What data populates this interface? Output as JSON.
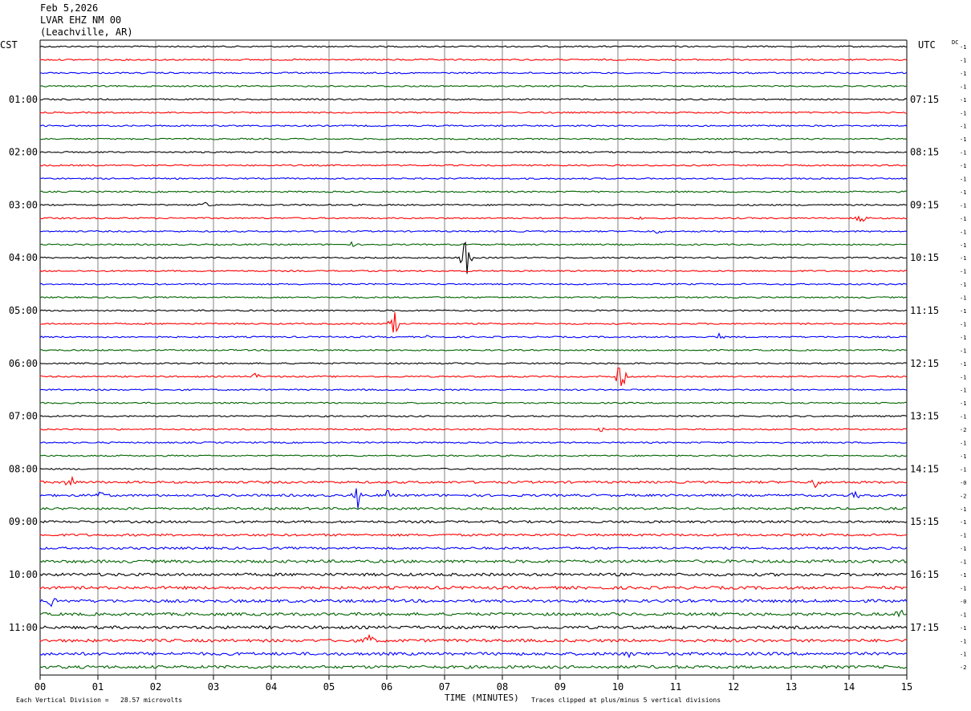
{
  "header": {
    "date": "Feb 5,2026",
    "station": "LVAR EHZ NM 00",
    "location": "(Leachville, AR)"
  },
  "left_axis_label": "CST",
  "right_axis_label": "UTC",
  "dc_label": "DC",
  "footer": {
    "scale_note": "Each Vertical Division =   28.57 microvolts",
    "x_title": "TIME (MINUTES)",
    "clip_note": "Traces clipped at plus/minus 5 vertical divisions"
  },
  "colors": {
    "trace_cycle": [
      "#000000",
      "#ff0000",
      "#0000ff",
      "#006400"
    ],
    "grid": "#808080"
  },
  "chart_data": {
    "type": "line",
    "description_type": "helicorder",
    "x_ticks": [
      "00",
      "01",
      "02",
      "03",
      "04",
      "05",
      "06",
      "07",
      "08",
      "09",
      "10",
      "11",
      "12",
      "13",
      "14",
      "15"
    ],
    "xlim": [
      0,
      15
    ],
    "trace_count": 48,
    "left_time_labels": [
      {
        "row": 4,
        "label": "01:00"
      },
      {
        "row": 8,
        "label": "02:00"
      },
      {
        "row": 12,
        "label": "03:00"
      },
      {
        "row": 16,
        "label": "04:00"
      },
      {
        "row": 20,
        "label": "05:00"
      },
      {
        "row": 24,
        "label": "06:00"
      },
      {
        "row": 28,
        "label": "07:00"
      },
      {
        "row": 32,
        "label": "08:00"
      },
      {
        "row": 36,
        "label": "09:00"
      },
      {
        "row": 40,
        "label": "10:00"
      },
      {
        "row": 44,
        "label": "11:00"
      }
    ],
    "right_time_labels": [
      {
        "row": 4,
        "label": "07:15"
      },
      {
        "row": 8,
        "label": "08:15"
      },
      {
        "row": 12,
        "label": "09:15"
      },
      {
        "row": 16,
        "label": "10:15"
      },
      {
        "row": 20,
        "label": "11:15"
      },
      {
        "row": 24,
        "label": "12:15"
      },
      {
        "row": 28,
        "label": "13:15"
      },
      {
        "row": 32,
        "label": "14:15"
      },
      {
        "row": 36,
        "label": "15:15"
      },
      {
        "row": 40,
        "label": "16:15"
      },
      {
        "row": 44,
        "label": "17:15"
      }
    ],
    "dc_offsets": [
      "-1",
      "-1",
      "-1",
      "-1",
      "-1",
      "-1",
      "-1",
      "-1",
      "-1",
      "-1",
      "-1",
      "-1",
      "-1",
      "-1",
      "-1",
      "-1",
      "-1",
      "-1",
      "-1",
      "-1",
      "-1",
      "-1",
      "-1",
      "-1",
      "-1",
      "-1",
      "-1",
      "-1",
      "-1",
      "-2",
      "-1",
      "-1",
      "-1",
      "-0",
      "-2",
      "-1",
      "-1",
      "-1",
      "-1",
      "-1",
      "-1",
      "-1",
      "-0",
      "-1",
      "-1",
      "-1",
      "-1",
      "-2"
    ],
    "events": [
      {
        "row": 12,
        "minute": 2.85,
        "amp": 0.8
      },
      {
        "row": 15,
        "minute": 5.4,
        "amp": 0.5
      },
      {
        "row": 13,
        "minute": 14.2,
        "amp": 1.6
      },
      {
        "row": 13,
        "minute": 10.4,
        "amp": 0.5
      },
      {
        "row": 14,
        "minute": 10.7,
        "amp": 0.5
      },
      {
        "row": 16,
        "minute": 7.37,
        "amp": 4.5
      },
      {
        "row": 21,
        "minute": 6.1,
        "amp": 4.5
      },
      {
        "row": 22,
        "minute": 6.7,
        "amp": 0.5
      },
      {
        "row": 22,
        "minute": 11.75,
        "amp": 0.6
      },
      {
        "row": 25,
        "minute": 3.73,
        "amp": 0.9
      },
      {
        "row": 25,
        "minute": 10.05,
        "amp": 3.0
      },
      {
        "row": 29,
        "minute": 9.7,
        "amp": 0.6
      },
      {
        "row": 33,
        "minute": 0.53,
        "amp": 1.5
      },
      {
        "row": 33,
        "minute": 13.42,
        "amp": 1.2
      },
      {
        "row": 34,
        "minute": 1.02,
        "amp": 1.5
      },
      {
        "row": 34,
        "minute": 5.5,
        "amp": 2.5
      },
      {
        "row": 34,
        "minute": 6.0,
        "amp": 1.0
      },
      {
        "row": 34,
        "minute": 14.1,
        "amp": 0.7
      },
      {
        "row": 42,
        "minute": 0.2,
        "amp": 1.6
      },
      {
        "row": 43,
        "minute": 14.85,
        "amp": 2.0
      },
      {
        "row": 45,
        "minute": 5.7,
        "amp": 1.3
      },
      {
        "row": 46,
        "minute": 10.2,
        "amp": 1.2
      }
    ]
  }
}
